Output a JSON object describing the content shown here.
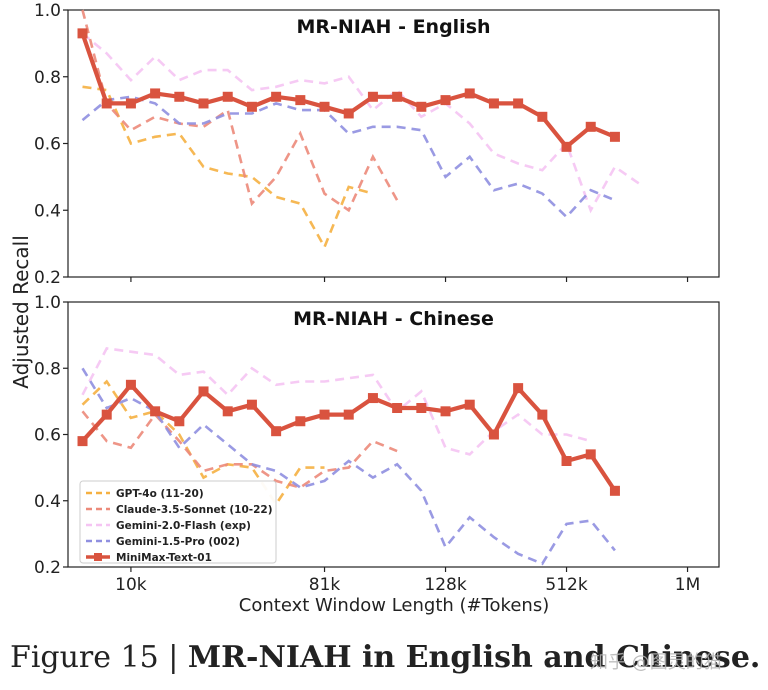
{
  "caption": {
    "lead": "Figure 15 | ",
    "title": "MR-NIAH in English and Chinese."
  },
  "watermark": "知乎 @图灵的猫",
  "shared": {
    "ylabel": "Adjusted Recall",
    "xlabel": "Context Window Length (#Tokens)",
    "xticks": [
      {
        "label": "10k",
        "x": 2
      },
      {
        "label": "81k",
        "x": 10
      },
      {
        "label": "128k",
        "x": 15
      },
      {
        "label": "512k",
        "x": 20
      },
      {
        "label": "1M",
        "x": 25
      }
    ],
    "yticks": [
      "0.2",
      "0.4",
      "0.6",
      "0.8",
      "1.0"
    ],
    "legend_placement": "lower-left of bottom panel"
  },
  "chart_data": [
    {
      "type": "line",
      "title": "MR-NIAH - English",
      "ylim": [
        0.2,
        1.0
      ],
      "xlim": [
        -0.6,
        26.3
      ],
      "series": [
        {
          "name": "GPT-4o (11-20)",
          "color": "#f5b041",
          "style": "dashed",
          "x": [
            0,
            1,
            2,
            3,
            4,
            5,
            6,
            7,
            8,
            9,
            10,
            11,
            12,
            13
          ],
          "values": [
            0.77,
            0.76,
            0.6,
            0.62,
            0.63,
            0.53,
            0.51,
            0.5,
            0.44,
            0.42,
            0.29,
            0.47,
            0.45,
            null
          ]
        },
        {
          "name": "Claude-3.5-Sonnet (10-22)",
          "color": "#ec8a7a",
          "style": "dashed",
          "x": [
            0,
            1,
            2,
            3,
            4,
            5,
            6,
            7,
            8,
            9,
            10,
            11,
            12,
            13,
            14
          ],
          "values": [
            1.0,
            0.72,
            0.64,
            0.68,
            0.66,
            0.65,
            0.7,
            0.42,
            0.5,
            0.63,
            0.45,
            0.4,
            0.56,
            0.43,
            null
          ]
        },
        {
          "name": "Gemini-2.0-Flash (exp)",
          "color": "#f5c4f3",
          "style": "dashed",
          "x": [
            0,
            1,
            2,
            3,
            4,
            5,
            6,
            7,
            8,
            9,
            10,
            11,
            12,
            13,
            14,
            15,
            16,
            17,
            18,
            19,
            20,
            21,
            22,
            23,
            24,
            25
          ],
          "values": [
            0.93,
            0.87,
            0.79,
            0.86,
            0.79,
            0.82,
            0.82,
            0.76,
            0.77,
            0.79,
            0.78,
            0.8,
            0.7,
            0.76,
            0.68,
            0.72,
            0.66,
            0.57,
            0.54,
            0.52,
            0.6,
            0.4,
            0.53,
            0.48,
            null,
            null
          ]
        },
        {
          "name": "Gemini-1.5-Pro (002)",
          "color": "#8f8fe0",
          "style": "dashed",
          "x": [
            0,
            1,
            2,
            3,
            4,
            5,
            6,
            7,
            8,
            9,
            10,
            11,
            12,
            13,
            14,
            15,
            16,
            17,
            18,
            19,
            20,
            21,
            22,
            23,
            24,
            25
          ],
          "values": [
            0.67,
            0.73,
            0.74,
            0.72,
            0.66,
            0.66,
            0.69,
            0.69,
            0.72,
            0.7,
            0.7,
            0.63,
            0.65,
            0.65,
            0.64,
            0.5,
            0.56,
            0.46,
            0.48,
            0.45,
            0.38,
            0.46,
            0.43,
            null,
            null,
            null
          ]
        },
        {
          "name": "MiniMax-Text-01",
          "color": "#d9533f",
          "style": "solid-marker",
          "x": [
            0,
            1,
            2,
            3,
            4,
            5,
            6,
            7,
            8,
            9,
            10,
            11,
            12,
            13,
            14,
            15,
            16,
            17,
            18,
            19,
            20,
            21,
            22,
            23,
            24,
            25
          ],
          "values": [
            0.93,
            0.72,
            0.72,
            0.75,
            0.74,
            0.72,
            0.74,
            0.71,
            0.74,
            0.73,
            0.71,
            0.69,
            0.74,
            0.74,
            0.71,
            0.73,
            0.75,
            0.72,
            0.72,
            0.68,
            0.59,
            0.65,
            0.62,
            null,
            null,
            null
          ]
        }
      ]
    },
    {
      "type": "line",
      "title": "MR-NIAH - Chinese",
      "ylim": [
        0.2,
        1.0
      ],
      "xlim": [
        -0.6,
        26.3
      ],
      "series": [
        {
          "name": "GPT-4o (11-20)",
          "color": "#f5b041",
          "style": "dashed",
          "x": [
            0,
            1,
            2,
            3,
            4,
            5,
            6,
            7,
            8,
            9,
            10,
            11
          ],
          "values": [
            0.69,
            0.76,
            0.65,
            0.67,
            0.6,
            0.47,
            0.51,
            0.5,
            0.39,
            0.5,
            0.5,
            null
          ]
        },
        {
          "name": "Claude-3.5-Sonnet (10-22)",
          "color": "#ec8a7a",
          "style": "dashed",
          "x": [
            0,
            1,
            2,
            3,
            4,
            5,
            6,
            7,
            8,
            9,
            10,
            11,
            12,
            13
          ],
          "values": [
            0.67,
            0.58,
            0.56,
            0.66,
            0.58,
            0.49,
            0.51,
            0.51,
            0.46,
            0.44,
            0.49,
            0.5,
            0.58,
            0.55
          ]
        },
        {
          "name": "Gemini-2.0-Flash (exp)",
          "color": "#f5c4f3",
          "style": "dashed",
          "x": [
            0,
            1,
            2,
            3,
            4,
            5,
            6,
            7,
            8,
            9,
            10,
            11,
            12,
            13,
            14,
            15,
            16,
            17,
            18,
            19,
            20,
            21,
            22,
            23
          ],
          "values": [
            0.72,
            0.86,
            0.85,
            0.84,
            0.78,
            0.79,
            0.72,
            0.8,
            0.75,
            0.76,
            0.76,
            0.77,
            0.78,
            0.67,
            0.73,
            0.56,
            0.54,
            0.61,
            0.66,
            0.6,
            0.6,
            0.58,
            null,
            null
          ]
        },
        {
          "name": "Gemini-1.5-Pro (002)",
          "color": "#8f8fe0",
          "style": "dashed",
          "x": [
            0,
            1,
            2,
            3,
            4,
            5,
            6,
            7,
            8,
            9,
            10,
            11,
            12,
            13,
            14,
            15,
            16,
            17,
            18,
            19,
            20,
            21,
            22,
            23,
            24,
            25
          ],
          "values": [
            0.8,
            0.68,
            0.71,
            0.67,
            0.56,
            0.63,
            0.57,
            0.51,
            0.49,
            0.44,
            0.46,
            0.52,
            0.47,
            0.51,
            0.43,
            0.26,
            0.35,
            0.29,
            0.24,
            0.21,
            0.33,
            0.34,
            0.25,
            null,
            null,
            null
          ]
        },
        {
          "name": "MiniMax-Text-01",
          "color": "#d9533f",
          "style": "solid-marker",
          "x": [
            0,
            1,
            2,
            3,
            4,
            5,
            6,
            7,
            8,
            9,
            10,
            11,
            12,
            13,
            14,
            15,
            16,
            17,
            18,
            19,
            20,
            21,
            22,
            23,
            24,
            25
          ],
          "values": [
            0.58,
            0.66,
            0.75,
            0.67,
            0.64,
            0.73,
            0.67,
            0.69,
            0.61,
            0.64,
            0.66,
            0.66,
            0.71,
            0.68,
            0.68,
            0.67,
            0.69,
            0.6,
            0.74,
            0.66,
            0.52,
            0.54,
            0.43,
            null,
            null,
            null
          ]
        }
      ]
    }
  ]
}
